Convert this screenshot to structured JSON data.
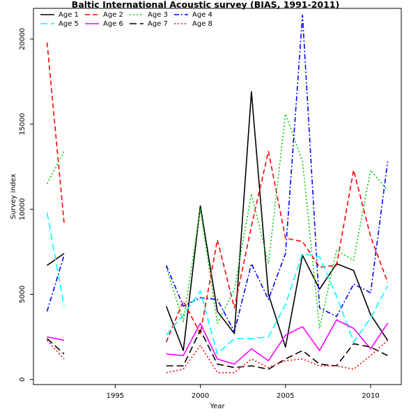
{
  "chart_data": {
    "type": "line",
    "title": "Baltic International Acoustic survey (BIAS, 1991-2011)",
    "xlabel": "Year",
    "ylabel": "Survey index",
    "xlim": [
      1990.2,
      2011.8
    ],
    "ylim": [
      -300,
      21800
    ],
    "x_ticks": [
      1995,
      2000,
      2005,
      2010
    ],
    "y_ticks": [
      0,
      5000,
      10000,
      15000,
      20000
    ],
    "grid": false,
    "legend_position": "top-left",
    "legend_columns": 4,
    "x": [
      1991,
      1992,
      1998,
      1999,
      2000,
      2001,
      2002,
      2003,
      2004,
      2005,
      2006,
      2007,
      2008,
      2009,
      2010,
      2011
    ],
    "series": [
      {
        "name": "Age 1",
        "color": "#000000",
        "dash": "solid",
        "values": [
          6700,
          7400,
          4300,
          1700,
          10200,
          4000,
          2700,
          16900,
          5000,
          1900,
          7300,
          5300,
          6800,
          6400,
          3800,
          2300
        ]
      },
      {
        "name": "Age 2",
        "color": "#ff0000",
        "dash": "dashed",
        "values": [
          19800,
          9200,
          2200,
          4600,
          2700,
          8200,
          4200,
          9000,
          13400,
          8300,
          8100,
          6600,
          6700,
          12300,
          8400,
          5700
        ]
      },
      {
        "name": "Age 3",
        "color": "#00cd00",
        "dash": "dotted",
        "values": [
          11500,
          13400,
          6600,
          3400,
          10000,
          3300,
          5300,
          10900,
          6800,
          15600,
          12800,
          3000,
          7600,
          7000,
          12300,
          11100
        ]
      },
      {
        "name": "Age 4",
        "color": "#0000ff",
        "dash": "dashdot",
        "values": [
          4000,
          7300,
          6700,
          4300,
          4800,
          4700,
          2800,
          6800,
          4700,
          7400,
          21400,
          4200,
          3700,
          5600,
          5100,
          12800
        ]
      },
      {
        "name": "Age 5",
        "color": "#00ffff",
        "dash": "longdash",
        "values": [
          9800,
          4300,
          2600,
          3800,
          5200,
          1500,
          2400,
          2400,
          2500,
          4400,
          7400,
          7200,
          4900,
          2200,
          3600,
          5500
        ]
      },
      {
        "name": "Age 6",
        "color": "#ff00ff",
        "dash": "solid",
        "values": [
          2500,
          2300,
          1500,
          1400,
          3300,
          1200,
          900,
          1800,
          1100,
          2600,
          3100,
          1700,
          3500,
          3000,
          1800,
          3300
        ]
      },
      {
        "name": "Age 7",
        "color": "#000000",
        "dash": "longdash",
        "values": [
          2400,
          1500,
          800,
          800,
          2900,
          900,
          700,
          800,
          600,
          1200,
          1700,
          900,
          800,
          2100,
          1900,
          1400
        ]
      },
      {
        "name": "Age 8",
        "color": "#ff0000",
        "dash": "dotted",
        "values": [
          2300,
          1200,
          400,
          600,
          2000,
          400,
          400,
          1200,
          700,
          1100,
          1200,
          800,
          800,
          600,
          1400,
          2300
        ]
      }
    ]
  }
}
